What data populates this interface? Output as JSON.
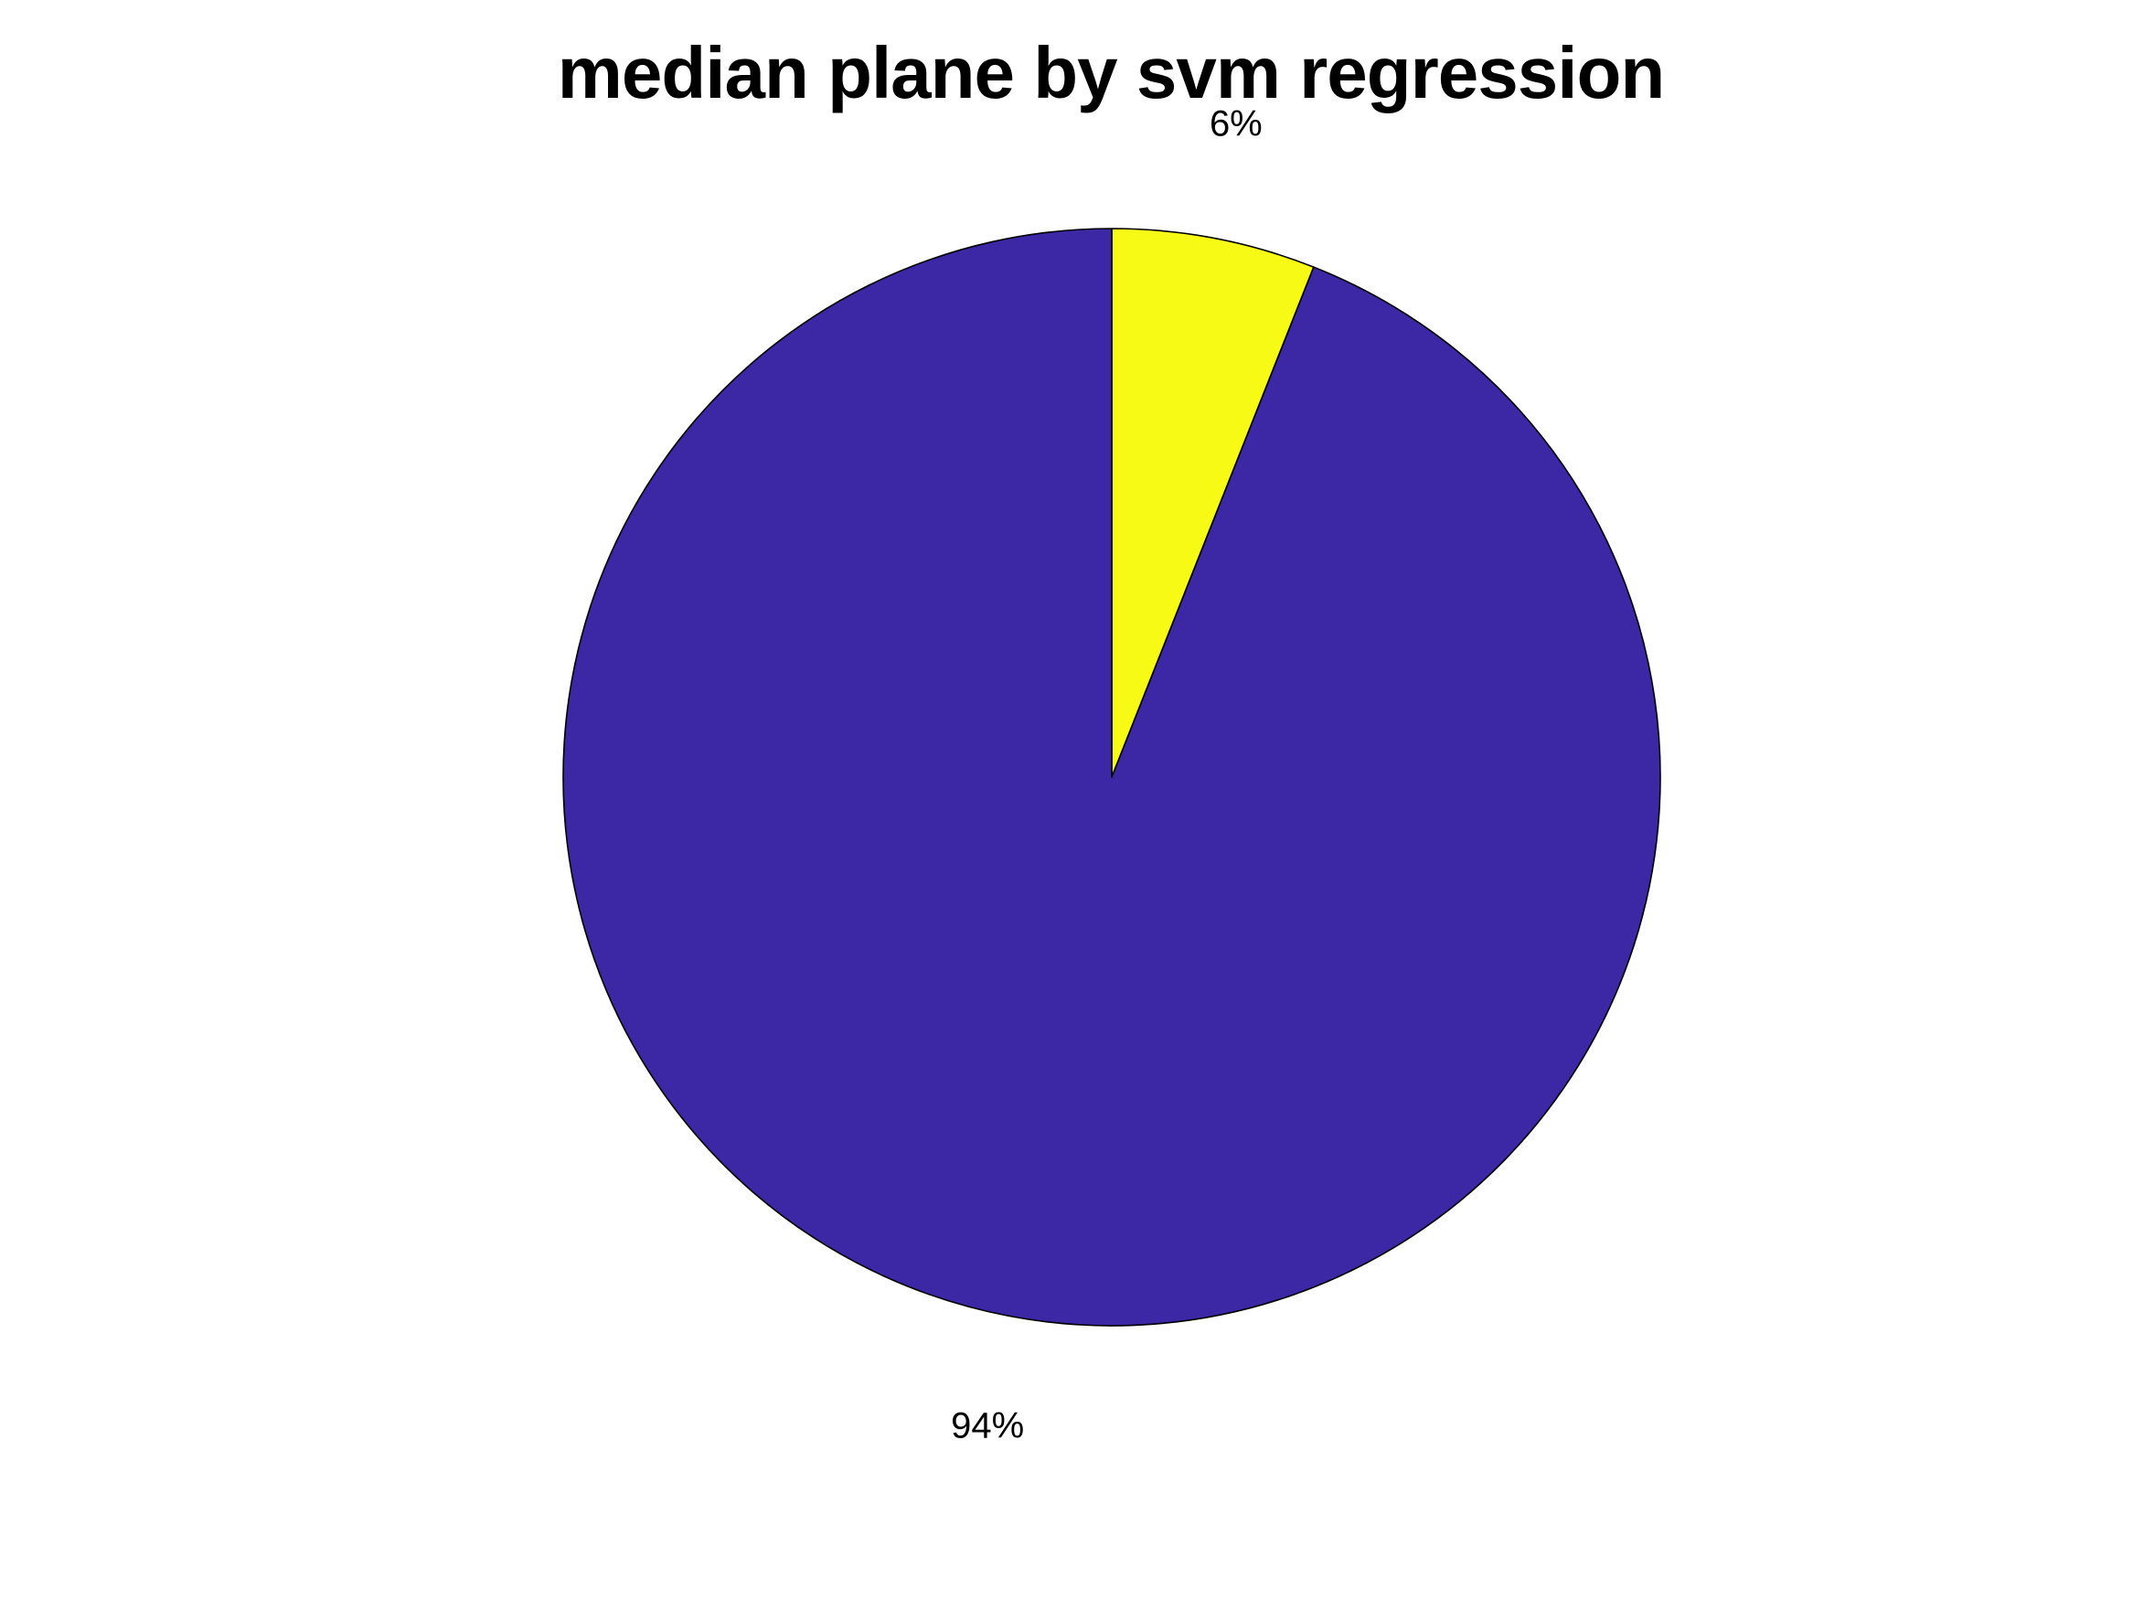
{
  "chart_data": {
    "type": "pie",
    "title": "median plane by svm regression",
    "start_angle": "top",
    "direction": "clockwise",
    "slices": [
      {
        "value": 6,
        "label": "6%",
        "color": "#f6fa14"
      },
      {
        "value": 94,
        "label": "94%",
        "color": "#3c27a5"
      }
    ]
  }
}
